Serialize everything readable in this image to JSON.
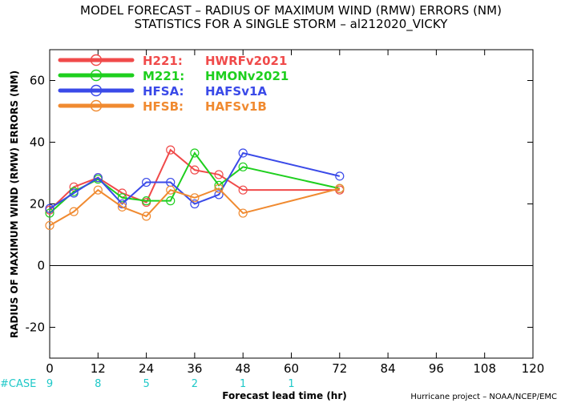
{
  "colors": {
    "H221": "#f04a4a",
    "M221": "#1ecf1e",
    "HFSA": "#3a4ae8",
    "HFSB": "#f08a30",
    "case": "#1ec8c8"
  },
  "case_label": "#CASE",
  "case_counts": [
    {
      "x": 0,
      "n": "9"
    },
    {
      "x": 12,
      "n": "8"
    },
    {
      "x": 24,
      "n": "5"
    },
    {
      "x": 36,
      "n": "2"
    },
    {
      "x": 48,
      "n": "1"
    },
    {
      "x": 60,
      "n": "1"
    }
  ],
  "credit": "Hurricane project – NOAA/NCEP/EMC",
  "chart_data": {
    "type": "line",
    "title": "MODEL FORECAST – RADIUS OF MAXIMUM WIND (RMW) ERRORS (NM)",
    "subtitle": "STATISTICS FOR A SINGLE STORM – al212020_VICKY",
    "xlabel": "Forecast lead time (hr)",
    "ylabel": "RADIUS OF MAXIMUM WIND (RMW) ERRORS (NM)",
    "xlim": [
      0,
      120
    ],
    "ylim": [
      -30,
      70
    ],
    "xticks": [
      0,
      12,
      24,
      36,
      48,
      60,
      72,
      84,
      96,
      108,
      120
    ],
    "yticks": [
      -20,
      0,
      20,
      40,
      60
    ],
    "zero_line": true,
    "legend_position": "top-left",
    "series": [
      {
        "key": "H221",
        "name": "H221:",
        "desc": "HWRFv2021",
        "x": [
          0,
          6,
          12,
          18,
          24,
          30,
          36,
          42,
          48,
          72
        ],
        "y": [
          18,
          25.5,
          28.5,
          23.5,
          20.5,
          37.5,
          31,
          29.5,
          24.5,
          24.5
        ]
      },
      {
        "key": "M221",
        "name": "M221:",
        "desc": "HMONv2021",
        "x": [
          0,
          6,
          12,
          18,
          24,
          30,
          36,
          42,
          48,
          72
        ],
        "y": [
          17,
          24,
          28,
          22,
          21,
          21,
          36.5,
          26,
          32,
          25
        ]
      },
      {
        "key": "HFSA",
        "name": "HFSA:",
        "desc": "HAFSv1A",
        "x": [
          0,
          6,
          12,
          18,
          24,
          30,
          36,
          42,
          48,
          72
        ],
        "y": [
          18.5,
          23.5,
          28.5,
          20,
          27,
          27,
          20,
          23,
          36.5,
          29
        ]
      },
      {
        "key": "HFSB",
        "name": "HFSB:",
        "desc": "HAFSv1B",
        "x": [
          0,
          6,
          12,
          18,
          24,
          30,
          36,
          42,
          48,
          72
        ],
        "y": [
          13,
          17.5,
          24.5,
          19,
          16,
          24.5,
          22,
          25,
          17,
          25
        ]
      }
    ]
  }
}
